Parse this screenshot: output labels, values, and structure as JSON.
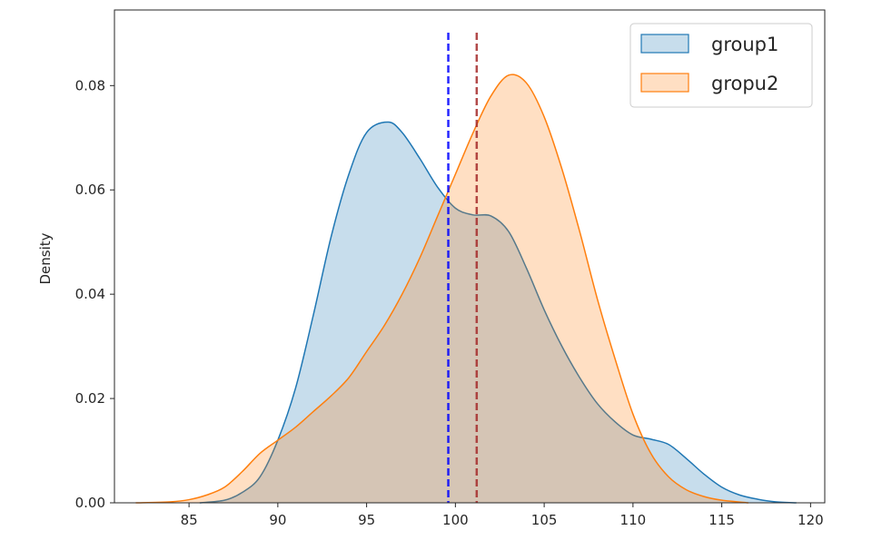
{
  "chart_data": {
    "type": "area",
    "title": "",
    "xlabel": "",
    "ylabel": "Density",
    "xlim": [
      80.8,
      120.8
    ],
    "ylim": [
      0,
      0.0945
    ],
    "xticks": [
      85,
      90,
      95,
      100,
      105,
      110,
      115,
      120
    ],
    "yticks": [
      0.0,
      0.02,
      0.04,
      0.06,
      0.08
    ],
    "ytick_labels": [
      "0.00",
      "0.02",
      "0.04",
      "0.06",
      "0.08"
    ],
    "grid": false,
    "legend_position": "top-right",
    "series": [
      {
        "name": "group1",
        "color": "#1f77b4",
        "points": [
          [
            85.6,
            0.0
          ],
          [
            87.0,
            0.0005
          ],
          [
            88.0,
            0.002
          ],
          [
            89.0,
            0.005
          ],
          [
            90.0,
            0.012
          ],
          [
            91.0,
            0.022
          ],
          [
            92.0,
            0.036
          ],
          [
            93.0,
            0.051
          ],
          [
            94.0,
            0.063
          ],
          [
            95.0,
            0.071
          ],
          [
            96.2,
            0.073
          ],
          [
            97.0,
            0.071
          ],
          [
            98.0,
            0.066
          ],
          [
            99.0,
            0.0605
          ],
          [
            100.0,
            0.0565
          ],
          [
            101.0,
            0.0552
          ],
          [
            102.0,
            0.055
          ],
          [
            103.0,
            0.052
          ],
          [
            104.0,
            0.045
          ],
          [
            105.0,
            0.037
          ],
          [
            106.0,
            0.03
          ],
          [
            107.0,
            0.024
          ],
          [
            108.0,
            0.019
          ],
          [
            109.0,
            0.0155
          ],
          [
            110.0,
            0.013
          ],
          [
            111.0,
            0.0122
          ],
          [
            112.0,
            0.0112
          ],
          [
            113.0,
            0.0085
          ],
          [
            114.0,
            0.0055
          ],
          [
            115.0,
            0.003
          ],
          [
            116.0,
            0.0015
          ],
          [
            117.0,
            0.0007
          ],
          [
            118.0,
            0.0002
          ],
          [
            119.2,
            0.0
          ]
        ]
      },
      {
        "name": "gropu2",
        "color": "#ff7f0e",
        "points": [
          [
            82.0,
            0.0
          ],
          [
            84.0,
            0.0002
          ],
          [
            85.0,
            0.0006
          ],
          [
            86.0,
            0.0015
          ],
          [
            87.0,
            0.003
          ],
          [
            88.0,
            0.006
          ],
          [
            89.0,
            0.0095
          ],
          [
            90.0,
            0.012
          ],
          [
            91.0,
            0.0145
          ],
          [
            92.0,
            0.0175
          ],
          [
            93.0,
            0.0205
          ],
          [
            94.0,
            0.024
          ],
          [
            95.0,
            0.029
          ],
          [
            96.0,
            0.034
          ],
          [
            97.0,
            0.04
          ],
          [
            98.0,
            0.047
          ],
          [
            99.0,
            0.055
          ],
          [
            100.0,
            0.063
          ],
          [
            101.0,
            0.071
          ],
          [
            102.0,
            0.078
          ],
          [
            103.0,
            0.082
          ],
          [
            104.0,
            0.0805
          ],
          [
            105.0,
            0.074
          ],
          [
            106.0,
            0.064
          ],
          [
            107.0,
            0.052
          ],
          [
            108.0,
            0.039
          ],
          [
            109.0,
            0.0275
          ],
          [
            110.0,
            0.017
          ],
          [
            111.0,
            0.0095
          ],
          [
            112.0,
            0.005
          ],
          [
            113.0,
            0.0025
          ],
          [
            114.0,
            0.0012
          ],
          [
            115.0,
            0.0005
          ],
          [
            116.5,
            0.0
          ]
        ]
      }
    ],
    "vlines": [
      {
        "x": 99.6,
        "color": "#0000ff"
      },
      {
        "x": 101.2,
        "color": "#a52a2a"
      }
    ]
  }
}
